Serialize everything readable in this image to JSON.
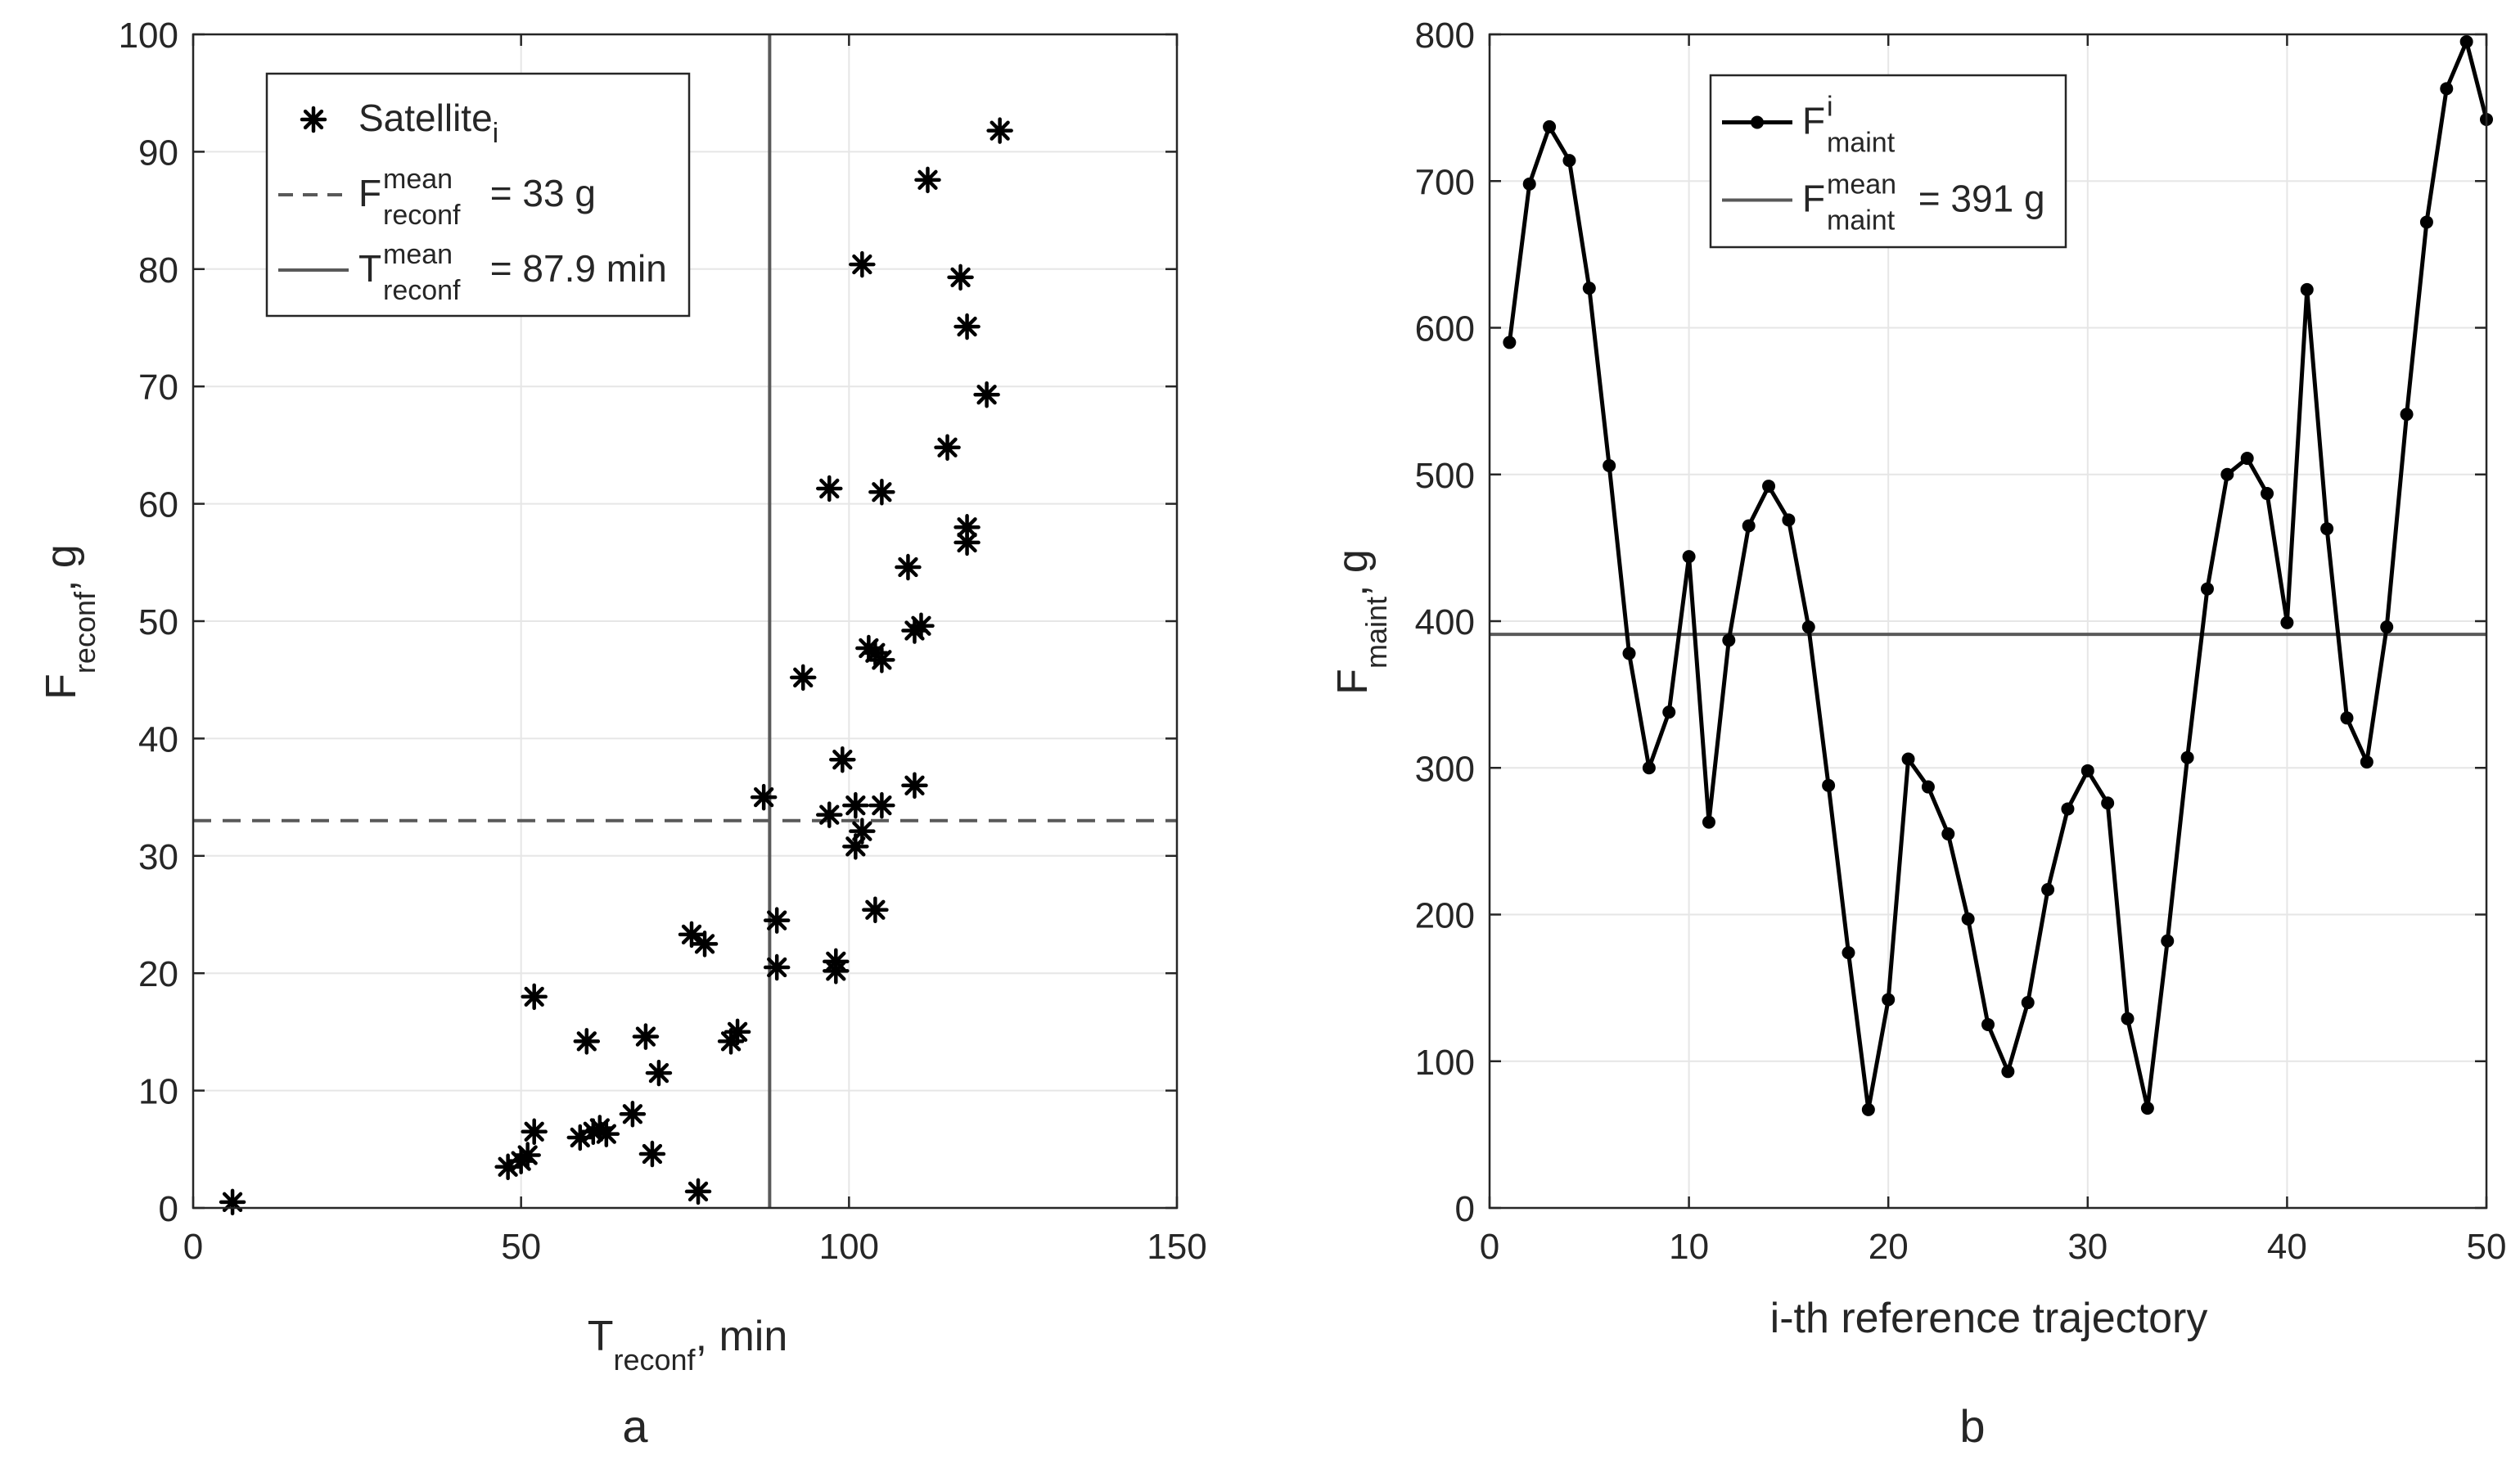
{
  "chart_data": [
    {
      "type": "scatter",
      "panel_label": "a",
      "xlabel": {
        "main": "T",
        "sub": "reconf",
        "suffix": ", min"
      },
      "ylabel": {
        "main": "F",
        "sub": "reconf",
        "suffix": ", g"
      },
      "xlim": [
        0,
        150
      ],
      "ylim": [
        0,
        100
      ],
      "xticks": [
        0,
        50,
        100,
        150
      ],
      "yticks": [
        0,
        10,
        20,
        30,
        40,
        50,
        60,
        70,
        80,
        90,
        100
      ],
      "grid": true,
      "legend_position": "top-left",
      "legend": [
        {
          "kind": "marker",
          "main": "Satellite",
          "sub": "i",
          "sup": "",
          "rest": ""
        },
        {
          "kind": "dashed",
          "main": "F",
          "sub": "reconf",
          "sup": "mean",
          "rest": " = 33 g"
        },
        {
          "kind": "solid",
          "main": "T",
          "sub": "reconf",
          "sup": "mean",
          "rest": " = 87.9 min"
        }
      ],
      "hline": {
        "y": 33,
        "style": "dashed",
        "color": "#595959"
      },
      "vline": {
        "x": 87.9,
        "style": "solid",
        "color": "#595959"
      },
      "series": [
        {
          "name": "Satellite_i",
          "marker": "asterisk",
          "color": "#000000",
          "points": [
            [
              6,
              0.5
            ],
            [
              48,
              3.5
            ],
            [
              50,
              4
            ],
            [
              51,
              4.5
            ],
            [
              52,
              6.5
            ],
            [
              52,
              18
            ],
            [
              59,
              6
            ],
            [
              60,
              14.2
            ],
            [
              61,
              6.5
            ],
            [
              62,
              6.8
            ],
            [
              63,
              6.3
            ],
            [
              67,
              8
            ],
            [
              69,
              14.6
            ],
            [
              70,
              4.6
            ],
            [
              71,
              11.5
            ],
            [
              76,
              23.3
            ],
            [
              77,
              1.4
            ],
            [
              78,
              22.5
            ],
            [
              82,
              14.2
            ],
            [
              83,
              15
            ],
            [
              87,
              35
            ],
            [
              89,
              24.5
            ],
            [
              89,
              20.5
            ],
            [
              93,
              45.2
            ],
            [
              97,
              61.3
            ],
            [
              97,
              33.5
            ],
            [
              98,
              20.2
            ],
            [
              98,
              21
            ],
            [
              99,
              38.2
            ],
            [
              101,
              30.8
            ],
            [
              101,
              34.3
            ],
            [
              102,
              32.1
            ],
            [
              102,
              80.4
            ],
            [
              103,
              47.7
            ],
            [
              104,
              47.3
            ],
            [
              104,
              25.4
            ],
            [
              105,
              46.7
            ],
            [
              105,
              34.3
            ],
            [
              105,
              61
            ],
            [
              109,
              54.6
            ],
            [
              110,
              36
            ],
            [
              110,
              49.2
            ],
            [
              111,
              49.6
            ],
            [
              112,
              87.6
            ],
            [
              115,
              64.8
            ],
            [
              117,
              79.3
            ],
            [
              118,
              75.1
            ],
            [
              118,
              58
            ],
            [
              118,
              56.7
            ],
            [
              121,
              69.3
            ],
            [
              123,
              91.8
            ]
          ]
        }
      ]
    },
    {
      "type": "line",
      "panel_label": "b",
      "xlabel": {
        "main": "i-th reference trajectory",
        "sub": "",
        "suffix": ""
      },
      "ylabel": {
        "main": "F",
        "sub": "maint",
        "suffix": ", g"
      },
      "xlim": [
        0,
        50
      ],
      "ylim": [
        0,
        800
      ],
      "xticks": [
        0,
        10,
        20,
        30,
        40,
        50
      ],
      "yticks": [
        0,
        100,
        200,
        300,
        400,
        500,
        600,
        700,
        800
      ],
      "grid": true,
      "legend_position": "top-left",
      "legend": [
        {
          "kind": "line-marker",
          "main": "F",
          "sub": "maint",
          "sup": "i",
          "rest": ""
        },
        {
          "kind": "solid",
          "main": "F",
          "sub": "maint",
          "sup": "mean",
          "rest": " = 391 g"
        }
      ],
      "hline": {
        "y": 391,
        "style": "solid",
        "color": "#595959"
      },
      "series": [
        {
          "name": "F_maint^i",
          "marker": "dot",
          "color": "#000000",
          "x": [
            1,
            2,
            3,
            4,
            5,
            6,
            7,
            8,
            9,
            10,
            11,
            12,
            13,
            14,
            15,
            16,
            17,
            18,
            19,
            20,
            21,
            22,
            23,
            24,
            25,
            26,
            27,
            28,
            29,
            30,
            31,
            32,
            33,
            34,
            35,
            36,
            37,
            38,
            39,
            40,
            41,
            42,
            43,
            44,
            45,
            46,
            47,
            48,
            49,
            50
          ],
          "values": [
            590,
            698,
            737,
            714,
            627,
            506,
            378,
            300,
            338,
            444,
            263,
            387,
            465,
            492,
            469,
            396,
            288,
            174,
            67,
            142,
            306,
            287,
            255,
            197,
            125,
            93,
            140,
            217,
            272,
            298,
            276,
            129,
            68,
            182,
            307,
            422,
            500,
            511,
            487,
            399,
            626,
            463,
            334,
            304,
            396,
            541,
            672,
            763,
            795,
            742
          ]
        }
      ]
    }
  ]
}
